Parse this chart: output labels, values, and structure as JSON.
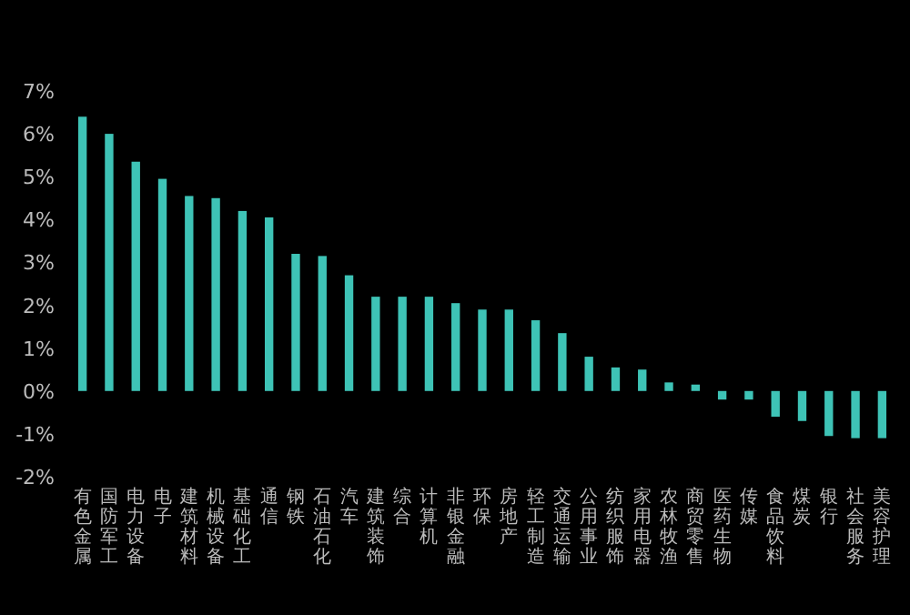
{
  "chart_data": {
    "type": "bar",
    "categories": [
      "有色金属",
      "国防军工",
      "电力设备",
      "电子",
      "建筑材料",
      "机械设备",
      "基础化工",
      "通信",
      "钢铁",
      "石油石化",
      "汽车",
      "建筑装饰",
      "综合",
      "计算机",
      "非银金融",
      "环保",
      "房地产",
      "轻工制造",
      "交通运输",
      "公用事业",
      "纺织服饰",
      "家用电器",
      "农林牧渔",
      "商贸零售",
      "医药生物",
      "传媒",
      "食品饮料",
      "煤炭",
      "银行",
      "社会服务",
      "美容护理"
    ],
    "values": [
      6.4,
      6.0,
      5.35,
      4.95,
      4.55,
      4.5,
      4.2,
      4.05,
      3.2,
      3.15,
      2.7,
      2.2,
      2.2,
      2.2,
      2.05,
      1.9,
      1.9,
      1.65,
      1.35,
      0.8,
      0.55,
      0.5,
      0.2,
      0.15,
      -0.2,
      -0.2,
      -0.6,
      -0.7,
      -1.05,
      -1.1,
      -1.1
    ],
    "color": "#3ec3b6",
    "ylim": [
      -2,
      7
    ],
    "yticks": [
      {
        "value": -2,
        "label": "-2%"
      },
      {
        "value": -1,
        "label": "-1%"
      },
      {
        "value": 0,
        "label": "0%"
      },
      {
        "value": 1,
        "label": "1%"
      },
      {
        "value": 2,
        "label": "2%"
      },
      {
        "value": 3,
        "label": "3%"
      },
      {
        "value": 4,
        "label": "4%"
      },
      {
        "value": 5,
        "label": "5%"
      },
      {
        "value": 6,
        "label": "6%"
      },
      {
        "value": 7,
        "label": "7%"
      }
    ],
    "grid": false
  }
}
